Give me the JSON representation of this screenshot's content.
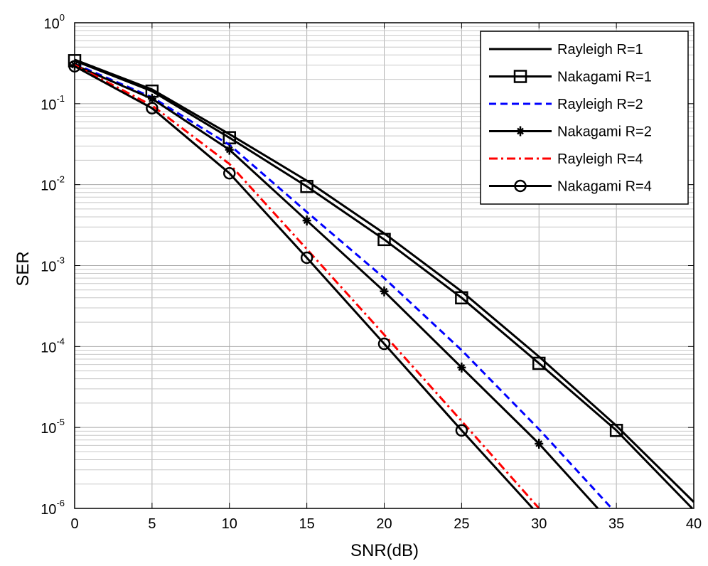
{
  "chart_data": {
    "type": "line",
    "xlabel": "SNR(dB)",
    "ylabel": "SER",
    "xlim": [
      0,
      40
    ],
    "ylim": [
      1e-06,
      1
    ],
    "yscale": "log",
    "grid": "on (major and minor)",
    "legend_position": "top-right",
    "x_ticks": [
      "0",
      "5",
      "10",
      "15",
      "20",
      "25",
      "30",
      "35",
      "40"
    ],
    "y_ticks": [
      {
        "base": "10",
        "exp": "0"
      },
      {
        "base": "10",
        "exp": "-1"
      },
      {
        "base": "10",
        "exp": "-2"
      },
      {
        "base": "10",
        "exp": "-3"
      },
      {
        "base": "10",
        "exp": "-4"
      },
      {
        "base": "10",
        "exp": "-5"
      },
      {
        "base": "10",
        "exp": "-6"
      }
    ],
    "series": [
      {
        "name": "Rayleigh R=1",
        "color": "#000000",
        "dash": "solid",
        "marker": "none",
        "x": [
          0,
          5,
          10,
          15,
          20,
          25,
          30,
          35,
          40
        ],
        "y": [
          0.35,
          0.15,
          0.042,
          0.0112,
          0.0025,
          0.00048,
          7.5e-05,
          1.05e-05,
          1.2e-06
        ]
      },
      {
        "name": "Nakagami R=1",
        "color": "#000000",
        "dash": "solid",
        "marker": "square",
        "x": [
          0,
          5,
          10,
          15,
          20,
          25,
          30,
          35,
          39.9
        ],
        "y": [
          0.34,
          0.143,
          0.038,
          0.0095,
          0.0021,
          0.0004,
          6.2e-05,
          9.2e-06,
          1e-06
        ]
      },
      {
        "name": "Rayleigh R=2",
        "color": "#0000ff",
        "dash": "dashed",
        "marker": "none",
        "x": [
          0,
          5,
          10,
          15,
          20,
          25,
          30,
          34.7
        ],
        "y": [
          0.31,
          0.12,
          0.031,
          0.0046,
          0.0007,
          9e-05,
          9.5e-06,
          1e-06
        ]
      },
      {
        "name": "Nakagami R=2",
        "color": "#000000",
        "dash": "solid",
        "marker": "plus-star",
        "x": [
          0,
          5,
          10,
          15,
          20,
          25,
          30,
          33.8
        ],
        "y": [
          0.3,
          0.115,
          0.027,
          0.0036,
          0.00048,
          5.5e-05,
          6.3e-06,
          1e-06
        ]
      },
      {
        "name": "Rayleigh R=4",
        "color": "#ff0000",
        "dash": "dash-dot",
        "marker": "none",
        "x": [
          0,
          5,
          10,
          15,
          20,
          25,
          30
        ],
        "y": [
          0.3,
          0.095,
          0.018,
          0.0016,
          0.00014,
          1.2e-05,
          1e-06
        ]
      },
      {
        "name": "Nakagami R=4",
        "color": "#000000",
        "dash": "solid",
        "marker": "circle",
        "x": [
          0,
          5,
          10,
          15,
          20,
          25,
          29.6
        ],
        "y": [
          0.29,
          0.088,
          0.0138,
          0.00125,
          0.000108,
          9.2e-06,
          1e-06
        ]
      }
    ]
  }
}
